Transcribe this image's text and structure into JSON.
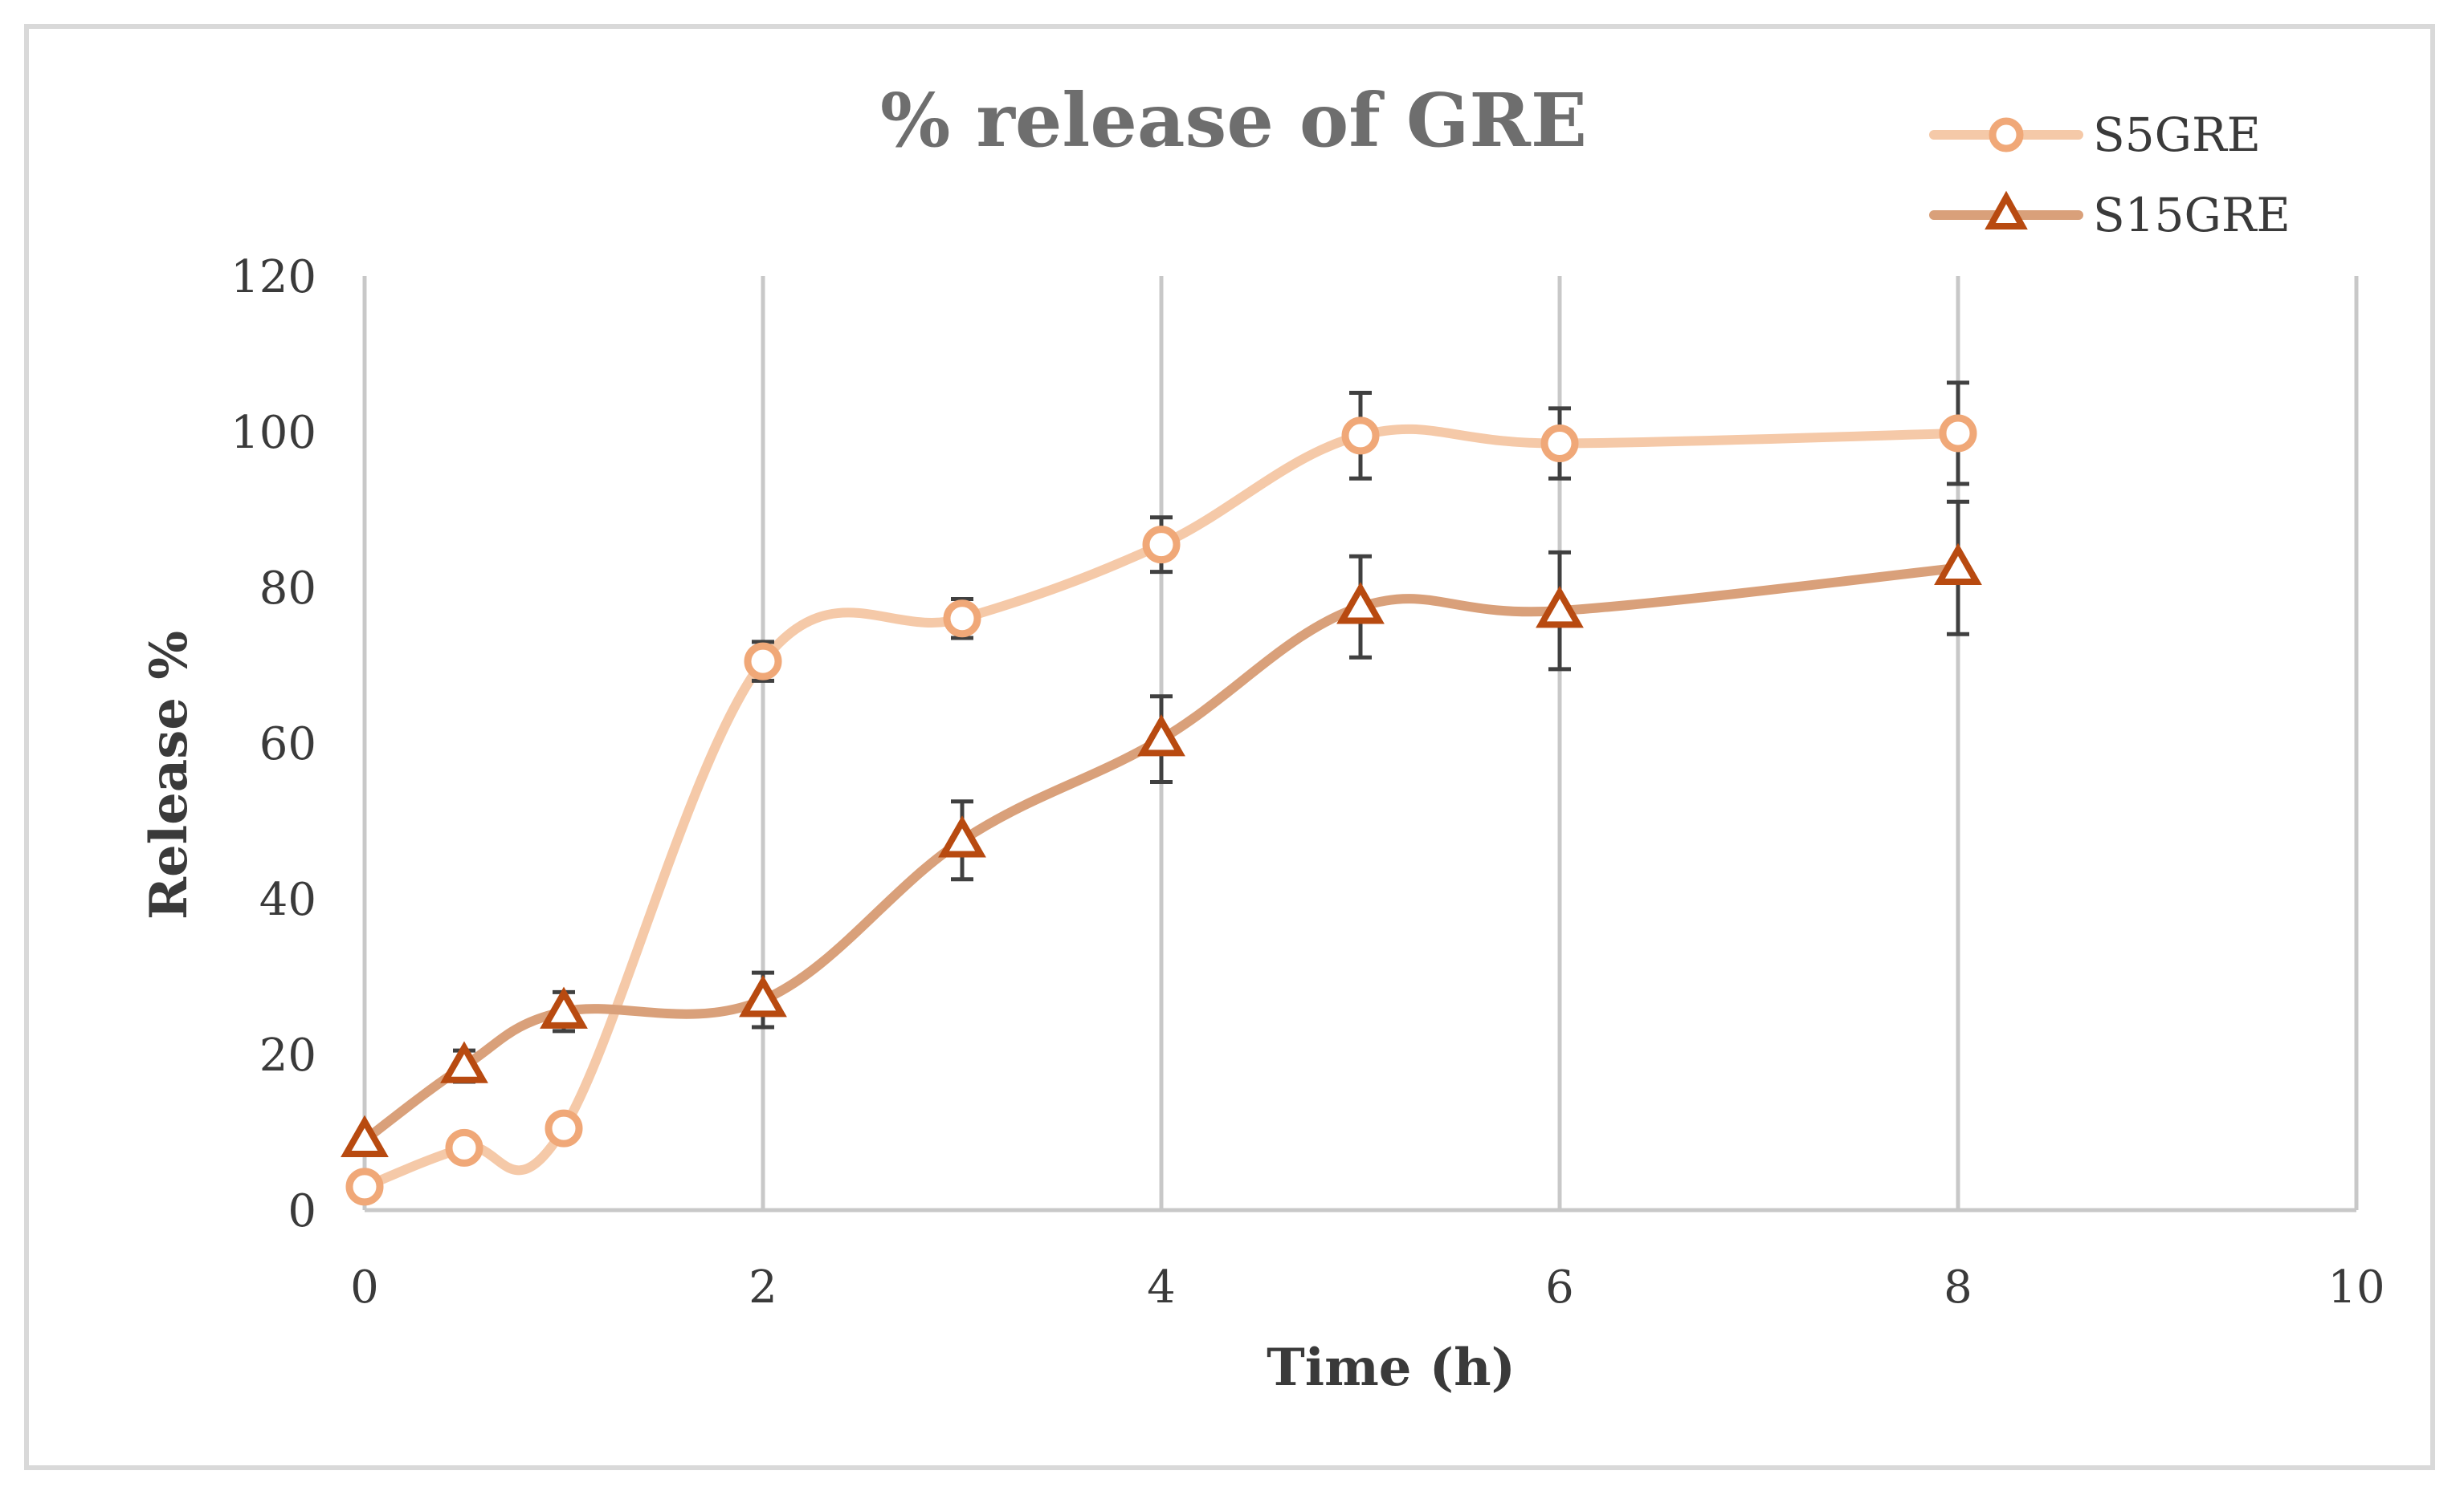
{
  "chart_data": {
    "type": "line",
    "title": "% release of GRE",
    "xlabel": "Time (h)",
    "ylabel": "Release %",
    "xlim": [
      0,
      10
    ],
    "ylim": [
      0,
      120
    ],
    "x_ticks": [
      "0",
      "2",
      "4",
      "6",
      "8",
      "10"
    ],
    "y_ticks": [
      "0",
      "20",
      "40",
      "60",
      "80",
      "100",
      "120"
    ],
    "grid": "vertical",
    "legend": "top-right",
    "smooth": true,
    "series": [
      {
        "name": "S5GRE",
        "marker": "circle",
        "color": "#f5c9a8",
        "marker_color": "#f0a878",
        "x": [
          0,
          0.5,
          1,
          2,
          3,
          4,
          5,
          6,
          8
        ],
        "values": [
          3,
          8,
          10.5,
          70.5,
          76,
          85.5,
          99.5,
          98.5,
          99.8
        ],
        "error": [
          0,
          0,
          0,
          2.5,
          2.5,
          3.5,
          5.5,
          4.5,
          6.5
        ]
      },
      {
        "name": "S15GRE",
        "marker": "triangle",
        "color": "#d9a07a",
        "marker_color": "#b84a10",
        "x": [
          0,
          0.5,
          1,
          2,
          3,
          4,
          5,
          6,
          8
        ],
        "values": [
          9,
          18.5,
          25.5,
          27,
          47.5,
          60.5,
          77.5,
          77,
          82.5
        ],
        "error": [
          0,
          2,
          2.5,
          3.5,
          5,
          5.5,
          6.5,
          7.5,
          8.5
        ]
      }
    ]
  }
}
